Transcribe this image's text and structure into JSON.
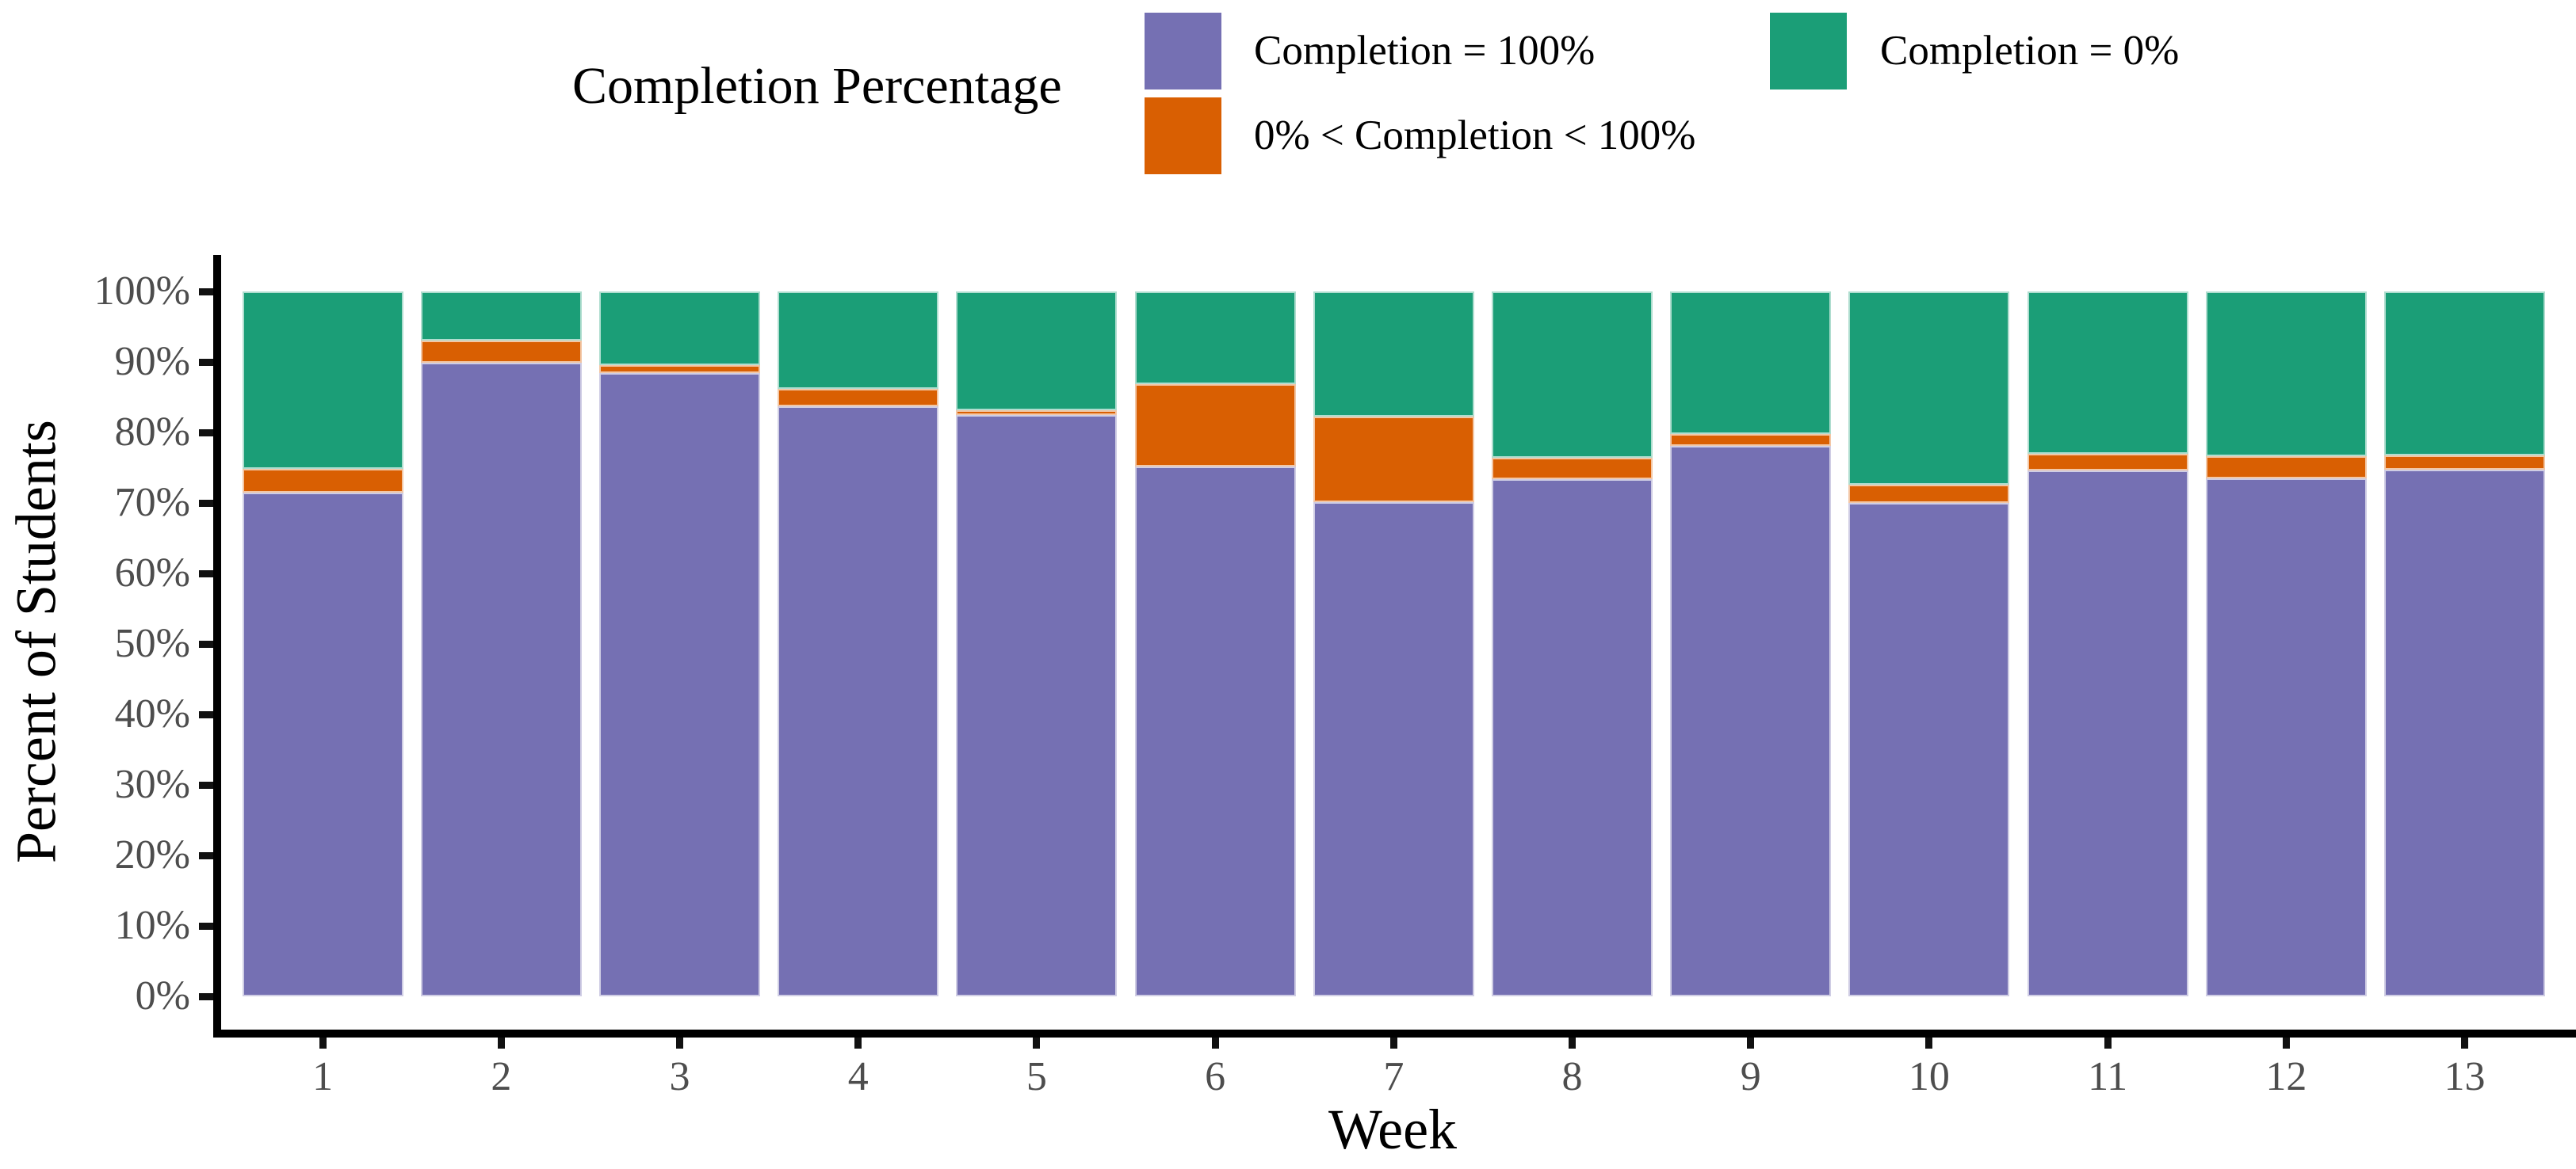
{
  "chart_data": {
    "type": "bar",
    "stacked": true,
    "orientation": "vertical",
    "legend_title": "Completion Percentage",
    "legend_position": "top",
    "grid": false,
    "xlabel": "Week",
    "ylabel": "Percent of Students",
    "ylim": [
      0,
      100
    ],
    "ytick_labels": [
      "0%",
      "10%",
      "20%",
      "30%",
      "40%",
      "50%",
      "60%",
      "70%",
      "80%",
      "90%",
      "100%"
    ],
    "categories": [
      "1",
      "2",
      "3",
      "4",
      "5",
      "6",
      "7",
      "8",
      "9",
      "10",
      "11",
      "12",
      "13"
    ],
    "series": [
      {
        "name": "Completion = 100%",
        "color": "#7570B3",
        "values": [
          71.5,
          89.9,
          88.4,
          83.7,
          82.5,
          75.2,
          70.1,
          73.4,
          78.1,
          70.0,
          74.6,
          73.5,
          74.7
        ]
      },
      {
        "name": "0% < Completion < 100%",
        "color": "#D95F02",
        "values": [
          3.3,
          3.1,
          1.2,
          2.5,
          0.7,
          11.7,
          12.1,
          3.0,
          1.7,
          2.6,
          2.4,
          3.1,
          2.0
        ]
      },
      {
        "name": "Completion = 0%",
        "color": "#1B9E77",
        "values": [
          25.2,
          7.0,
          10.4,
          13.8,
          16.8,
          13.1,
          17.8,
          23.6,
          20.2,
          27.4,
          23.0,
          23.4,
          23.3
        ]
      }
    ],
    "colors": {
      "axis_line": "#000000",
      "tick_mark": "#111111",
      "tick_label_text": "#4D4D4D",
      "title_text": "#000000",
      "background": "#FFFFFF"
    }
  }
}
